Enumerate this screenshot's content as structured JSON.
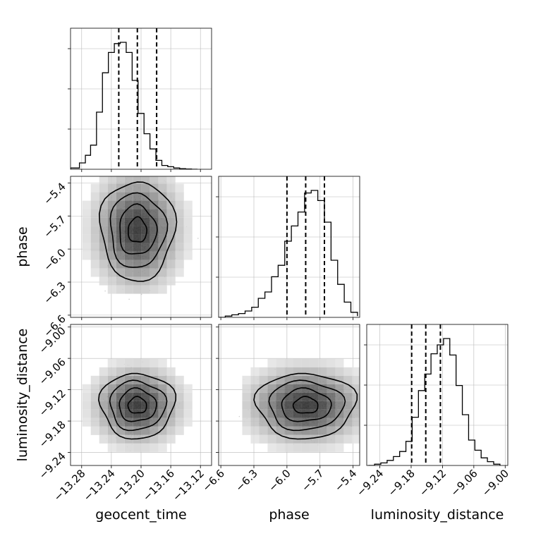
{
  "chart_data": {
    "type": "corner",
    "parameters": [
      {
        "name": "geocent_time",
        "label": "geocent_time",
        "range": [
          -13.295,
          -13.105
        ],
        "ticks": [
          -13.28,
          -13.24,
          -13.2,
          -13.16,
          -13.12
        ],
        "tick_labels": [
          "−13.28",
          "−13.24",
          "−13.20",
          "−13.16",
          "−13.12"
        ],
        "quantiles": [
          -13.23,
          -13.205,
          -13.179
        ],
        "center": -13.205,
        "sd": 0.02
      },
      {
        "name": "phase",
        "label": "phase",
        "range": [
          -6.62,
          -5.34
        ],
        "ticks": [
          -6.6,
          -6.3,
          -6.0,
          -5.7,
          -5.4
        ],
        "tick_labels": [
          "−6.6",
          "−6.3",
          "−6.0",
          "−5.7",
          "−5.4"
        ],
        "quantiles": [
          -6.0,
          -5.83,
          -5.66
        ],
        "center": -5.83,
        "sd": 0.18
      },
      {
        "name": "luminosity_distance",
        "label": "luminosity_distance",
        "range": [
          -9.265,
          -8.995
        ],
        "ticks": [
          -9.24,
          -9.18,
          -9.12,
          -9.06,
          -9.0
        ],
        "tick_labels": [
          "−9.24",
          "−9.18",
          "−9.12",
          "−9.06",
          "−9.00"
        ],
        "quantiles": [
          -9.179,
          -9.152,
          -9.124
        ],
        "center": -9.15,
        "sd": 0.025
      }
    ],
    "histograms": [
      {
        "param": "geocent_time",
        "bins": [
          -13.295,
          -13.283,
          -13.275,
          -13.268,
          -13.26,
          -13.252,
          -13.244,
          -13.236,
          -13.228,
          -13.22,
          -13.212,
          -13.204,
          -13.196,
          -13.188,
          -13.18,
          -13.172,
          -13.164,
          -13.156,
          -13.148,
          -13.14,
          -13.132,
          -13.124
        ],
        "counts": [
          0.01,
          0.05,
          0.11,
          0.19,
          0.45,
          0.76,
          0.92,
          0.99,
          1.0,
          0.92,
          0.7,
          0.44,
          0.28,
          0.16,
          0.07,
          0.03,
          0.02,
          0.01,
          0.005,
          0.002,
          0.0
        ]
      },
      {
        "param": "phase",
        "bins": [
          -6.62,
          -6.56,
          -6.5,
          -6.44,
          -6.38,
          -6.32,
          -6.26,
          -6.2,
          -6.14,
          -6.08,
          -6.02,
          -5.96,
          -5.9,
          -5.84,
          -5.78,
          -5.72,
          -5.66,
          -5.6,
          -5.54,
          -5.48,
          -5.42,
          -5.36
        ],
        "counts": [
          0.0,
          0.01,
          0.02,
          0.03,
          0.05,
          0.08,
          0.15,
          0.2,
          0.32,
          0.41,
          0.6,
          0.72,
          0.83,
          0.98,
          1.0,
          0.92,
          0.75,
          0.45,
          0.26,
          0.12,
          0.04,
          0.01
        ]
      },
      {
        "param": "luminosity_distance",
        "bins": [
          -9.262,
          -9.25,
          -9.238,
          -9.226,
          -9.214,
          -9.202,
          -9.19,
          -9.178,
          -9.166,
          -9.154,
          -9.142,
          -9.13,
          -9.118,
          -9.106,
          -9.094,
          -9.082,
          -9.07,
          -9.058,
          -9.046,
          -9.034,
          -9.022,
          -9.01
        ],
        "counts": [
          0.0,
          0.01,
          0.02,
          0.04,
          0.07,
          0.11,
          0.19,
          0.38,
          0.59,
          0.72,
          0.88,
          0.95,
          1.0,
          0.87,
          0.63,
          0.4,
          0.2,
          0.12,
          0.06,
          0.03,
          0.01,
          0.0
        ]
      }
    ],
    "contours": {
      "levels_sigma": [
        0.5,
        1.0,
        1.5,
        2.0
      ],
      "correlation": 0.0
    },
    "grid": true,
    "quantile_lines": "dashed",
    "colors": {
      "line": "#000000",
      "points": "#b0b0b0",
      "grid": "#b8b8b8"
    }
  }
}
